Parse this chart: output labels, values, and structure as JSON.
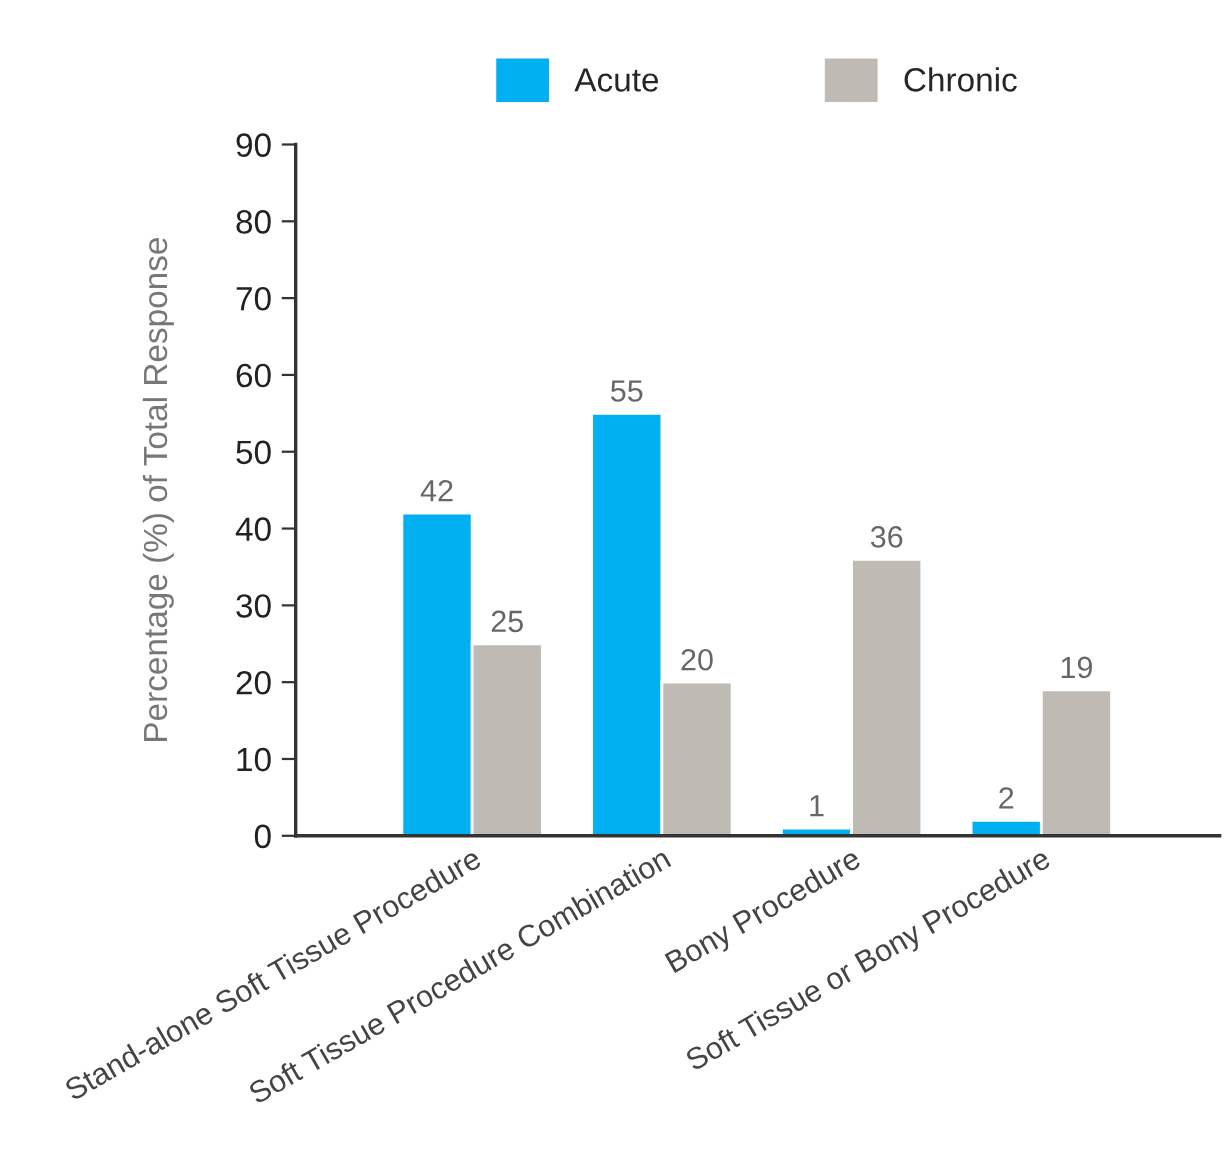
{
  "chart_data": {
    "type": "bar",
    "ylabel": "Percentage (%) of Total Response",
    "categories": [
      "Stand-alone Soft Tissue Procedure",
      "Soft Tissue Procedure Combination",
      "Bony Procedure",
      "Soft Tissue or Bony Procedure"
    ],
    "series": [
      {
        "name": "Acute",
        "color": "#00b0f0",
        "values": [
          42,
          55,
          1,
          2
        ]
      },
      {
        "name": "Chronic",
        "color": "#bfbab3",
        "values": [
          25,
          20,
          36,
          19
        ]
      }
    ],
    "ylim": [
      0,
      90
    ],
    "yticks": [
      0,
      10,
      20,
      30,
      40,
      50,
      60,
      70,
      80,
      90
    ],
    "data_labels": true,
    "legend": "top",
    "grid": false
  }
}
